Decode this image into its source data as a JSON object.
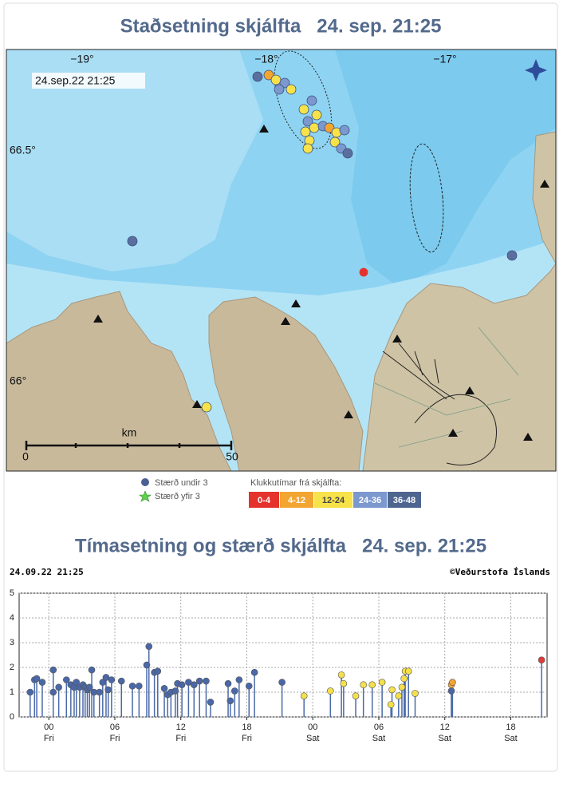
{
  "map": {
    "title": "Staðsetning skjálfta   24. sep. 21:25",
    "timestamp": "24.sep.22 21:25",
    "lon_labels": [
      "−19°",
      "−18°",
      "−17°"
    ],
    "lat_labels": [
      "66.5°",
      "66°"
    ],
    "scale": {
      "unit": "km",
      "start": "0",
      "end": "50"
    },
    "legend": {
      "size_below": "Stærð undir 3",
      "size_above": "Stærð yfir 3",
      "hours_title": "Klukkutímar frá skjálfta:",
      "hours": [
        {
          "label": "0-4",
          "color": "#e5322d"
        },
        {
          "label": "4-12",
          "color": "#f3a531"
        },
        {
          "label": "12-24",
          "color": "#f7e24a"
        },
        {
          "label": "24-36",
          "color": "#7b98cf"
        },
        {
          "label": "36-48",
          "color": "#4e6590"
        }
      ]
    }
  },
  "chart_data": {
    "type": "stem",
    "title": "Tímasetning og stærð skjálfta   24. sep. 21:25",
    "timestamp": "24.09.22 21:25",
    "credit": "©Veðurstofa Íslands",
    "xlim": [
      -2.7,
      45.3
    ],
    "ylim": [
      0,
      5
    ],
    "yticks": [
      0,
      1,
      2,
      3,
      4,
      5
    ],
    "xticks": [
      {
        "value": 0,
        "label": "00 Fri"
      },
      {
        "value": 6,
        "label": "06 Fri"
      },
      {
        "value": 12,
        "label": "12 Fri"
      },
      {
        "value": 18,
        "label": "18 Fri"
      },
      {
        "value": 24,
        "label": "00 Sat"
      },
      {
        "value": 30,
        "label": "06 Sat"
      },
      {
        "value": 36,
        "label": "12 Sat"
      },
      {
        "value": 42,
        "label": "18 Sat"
      }
    ],
    "grid": true,
    "stem_color": "#4a6aa8",
    "series": [
      {
        "color": "#4a67a6",
        "x": [
          -1.7,
          -1.3,
          -1.1,
          -0.6,
          0.4,
          0.4,
          0.9,
          1.6,
          2.0,
          2.3,
          2.5,
          2.8,
          3.1,
          3.3,
          3.5,
          3.7,
          3.9,
          4.1,
          4.6,
          4.9,
          5.2,
          5.4,
          5.7,
          6.6,
          7.6,
          8.2,
          8.9,
          9.1,
          9.6,
          9.9,
          10.5,
          10.8,
          11.1,
          11.5,
          11.7,
          12.1,
          12.7,
          13.2,
          13.7,
          14.3,
          14.7,
          16.3,
          16.5,
          16.9,
          17.3,
          18.2,
          18.7,
          21.2,
          36.6
        ],
        "values": [
          1.0,
          1.5,
          1.55,
          1.4,
          1.9,
          1.0,
          1.2,
          1.5,
          1.3,
          1.2,
          1.4,
          1.2,
          1.3,
          1.2,
          1.1,
          1.2,
          1.9,
          1.0,
          1.0,
          1.4,
          1.6,
          1.1,
          1.5,
          1.45,
          1.25,
          1.25,
          2.1,
          2.85,
          1.8,
          1.85,
          1.15,
          0.9,
          1.0,
          1.05,
          1.35,
          1.3,
          1.4,
          1.3,
          1.45,
          1.45,
          0.6,
          1.35,
          0.65,
          1.05,
          1.5,
          1.25,
          1.8,
          1.4,
          1.05
        ]
      },
      {
        "color": "#f4e04c",
        "x": [
          23.2,
          25.6,
          26.6,
          26.8,
          27.9,
          28.6,
          29.4,
          30.3,
          31.1,
          31.2,
          31.8,
          32.1,
          32.3,
          32.4,
          32.7,
          33.3
        ],
        "values": [
          0.85,
          1.05,
          1.7,
          1.35,
          0.85,
          1.3,
          1.3,
          1.4,
          0.5,
          1.1,
          0.85,
          1.2,
          1.55,
          1.85,
          1.85,
          0.95
        ]
      },
      {
        "color": "#f0a43a",
        "x": [
          36.6,
          36.7
        ],
        "values": [
          1.3,
          1.4
        ]
      },
      {
        "color": "#e03a3a",
        "x": [
          44.8
        ],
        "values": [
          2.3
        ]
      }
    ]
  }
}
